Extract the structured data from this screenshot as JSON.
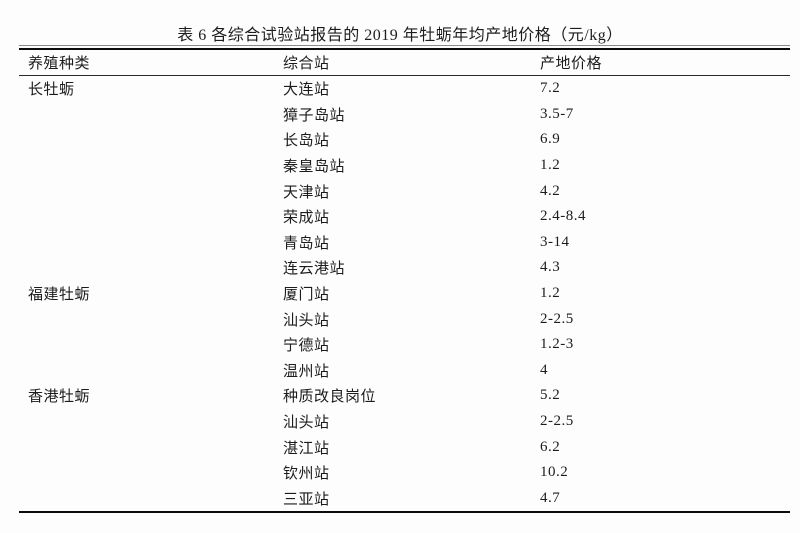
{
  "table": {
    "title": "表 6 各综合试验站报告的 2019 年牡蛎年均产地价格（元/kg）",
    "columns": [
      "养殖种类",
      "综合站",
      "产地价格"
    ],
    "rows": [
      {
        "species": "长牡蛎",
        "station": "大连站",
        "price": "7.2"
      },
      {
        "species": "",
        "station": "獐子岛站",
        "price": "3.5-7"
      },
      {
        "species": "",
        "station": "长岛站",
        "price": "6.9"
      },
      {
        "species": "",
        "station": "秦皇岛站",
        "price": "1.2"
      },
      {
        "species": "",
        "station": "天津站",
        "price": "4.2"
      },
      {
        "species": "",
        "station": "荣成站",
        "price": "2.4-8.4"
      },
      {
        "species": "",
        "station": "青岛站",
        "price": "3-14"
      },
      {
        "species": "",
        "station": "连云港站",
        "price": "4.3"
      },
      {
        "species": "福建牡蛎",
        "station": "厦门站",
        "price": "1.2"
      },
      {
        "species": "",
        "station": "汕头站",
        "price": "2-2.5"
      },
      {
        "species": "",
        "station": "宁德站",
        "price": "1.2-3"
      },
      {
        "species": "",
        "station": "温州站",
        "price": "4"
      },
      {
        "species": "香港牡蛎",
        "station": "种质改良岗位",
        "price": "5.2"
      },
      {
        "species": "",
        "station": "汕头站",
        "price": "2-2.5"
      },
      {
        "species": "",
        "station": "湛江站",
        "price": "6.2"
      },
      {
        "species": "",
        "station": "钦州站",
        "price": "10.2"
      },
      {
        "species": "",
        "station": "三亚站",
        "price": "4.7"
      }
    ],
    "colors": {
      "text": "#1c1c1c",
      "rule_thick": "#0c0c0c",
      "rule_thin": "#8a8a8a",
      "background": "#fdfdfd"
    }
  }
}
